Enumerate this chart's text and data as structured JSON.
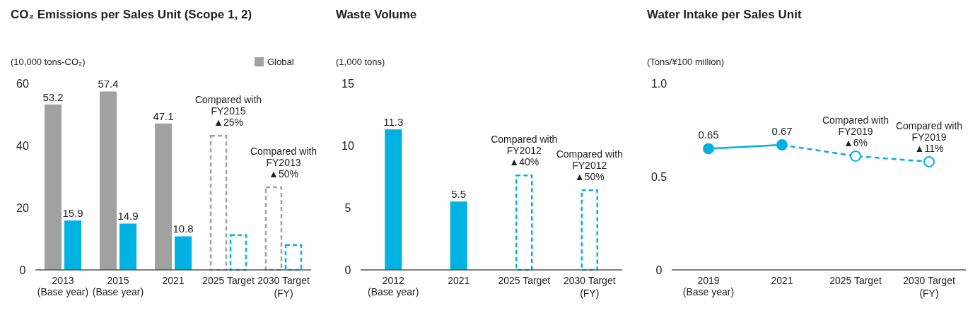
{
  "chart_data": [
    {
      "type": "bar",
      "title": "CO₂ Emissions per Sales Unit (Scope 1, 2)",
      "ylabel": "(10,000 tons-CO₂)",
      "xlabel": "(FY)",
      "categories": [
        "2013\n(Base year)",
        "2015\n(Base year)",
        "2021",
        "2025 Target",
        "2030 Target"
      ],
      "ylim": [
        0,
        60
      ],
      "yticks": [
        0,
        20,
        40,
        60
      ],
      "legend": "top right",
      "series": [
        {
          "name": "Global",
          "color": "#a0a2a1",
          "values": [
            53.2,
            57.4,
            47.1,
            null,
            null
          ],
          "value_labels": [
            "53.2",
            "57.4",
            "47.1",
            null,
            null
          ]
        },
        {
          "color": "#00b2e2",
          "values": [
            15.9,
            14.9,
            10.8,
            null,
            null
          ],
          "value_labels": [
            "15.9",
            "14.9",
            "10.8",
            null,
            null
          ]
        },
        {
          "color": "#a0a2a1",
          "line_style": "dashed",
          "values": [
            null,
            null,
            null,
            43.1,
            26.6
          ]
        },
        {
          "color": "#00b2e2",
          "line_style": "dashed",
          "values": [
            null,
            null,
            null,
            11.2,
            8.0
          ]
        }
      ],
      "annotations": [
        {
          "text": "Compared with\nFY2015\n▲25%",
          "x": "2025 Target",
          "y": 43.1
        },
        {
          "text": "Compared with\nFY2013\n▲50%",
          "x": "2030 Target",
          "y": 26.6
        }
      ]
    },
    {
      "type": "bar",
      "title": "Waste Volume",
      "ylabel": "(1,000 tons)",
      "xlabel": "(FY)",
      "categories": [
        "2012\n(Base year)",
        "2021",
        "2025 Target",
        "2030 Target"
      ],
      "ylim": [
        0,
        15
      ],
      "yticks": [
        0,
        5,
        10,
        15
      ],
      "series": [
        {
          "color": "#00b2e2",
          "values": [
            11.3,
            5.5,
            null,
            null
          ],
          "value_labels": [
            "11.3",
            "5.5",
            null,
            null
          ]
        },
        {
          "color": "#00b2e2",
          "line_style": "dashed",
          "values": [
            null,
            null,
            7.6,
            6.4
          ]
        }
      ],
      "annotations": [
        {
          "text": "Compared with\nFY2012\n▲40%",
          "x": "2025 Target",
          "y": 7.6
        },
        {
          "text": "Compared with\nFY2012\n▲50%",
          "x": "2030 Target",
          "y": 6.4
        }
      ]
    },
    {
      "type": "line",
      "title": "Water Intake per Sales Unit",
      "ylabel": "(Tons/¥100 million)",
      "xlabel": "(FY)",
      "categories": [
        "2019\n(Base year)",
        "2021",
        "2025 Target",
        "2030 Target"
      ],
      "ylim": [
        0,
        1
      ],
      "yticks": [
        0,
        {
          "value": 0.5,
          "label": "0.5"
        },
        {
          "value": 1,
          "label": "1.0"
        }
      ],
      "series": [
        {
          "color": "#00b2e2",
          "marker": "circle",
          "line_style": "solid",
          "values": [
            0.65,
            0.67,
            null,
            null
          ],
          "value_labels": [
            "0.65",
            "0.67",
            null,
            null
          ]
        },
        {
          "color": "#00b2e2",
          "marker": "circle",
          "line_style": "dashed",
          "values": [
            null,
            0.67,
            0.61,
            0.58
          ]
        }
      ],
      "annotations": [
        {
          "text": "Compared with\nFY2019\n▲6%",
          "x": "2025 Target",
          "y": 0.61
        },
        {
          "text": "Compared with\nFY2019\n▲11%",
          "x": "2030 Target",
          "y": 0.58
        }
      ]
    }
  ]
}
